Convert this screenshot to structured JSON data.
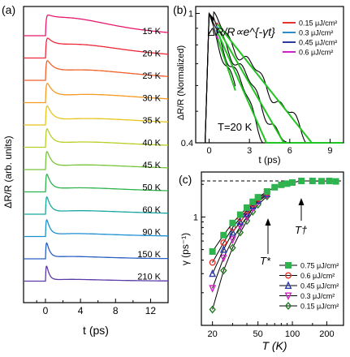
{
  "chart_data": [
    {
      "panel_label": "(a)",
      "type": "line",
      "xlabel": "t (ps)",
      "ylabel": "ΔR/R (arb. units)",
      "xlim": [
        -2.5,
        14
      ],
      "xticks": [
        0,
        4,
        8,
        12
      ],
      "legend": "inline labels at right",
      "series": [
        {
          "label": "15 K",
          "color": "#e8186e",
          "fast_decay_ps": 1.2,
          "slow_amp": 0.55,
          "slow_peak_ps": 3.5
        },
        {
          "label": "20 K",
          "color": "#ee2838",
          "fast_decay_ps": 1.0,
          "slow_amp": 0.45,
          "slow_peak_ps": 4.0
        },
        {
          "label": "25 K",
          "color": "#f1612a",
          "fast_decay_ps": 0.9,
          "slow_amp": 0.35,
          "slow_peak_ps": 4.5
        },
        {
          "label": "30 K",
          "color": "#f59a23",
          "fast_decay_ps": 0.8,
          "slow_amp": 0.28,
          "slow_peak_ps": 5.0
        },
        {
          "label": "35 K",
          "color": "#e7c51f",
          "fast_decay_ps": 0.7,
          "slow_amp": 0.22,
          "slow_peak_ps": 5.0
        },
        {
          "label": "40 K",
          "color": "#b9cf26",
          "fast_decay_ps": 0.6,
          "slow_amp": 0.18,
          "slow_peak_ps": 4.5
        },
        {
          "label": "45 K",
          "color": "#78c43a",
          "fast_decay_ps": 0.55,
          "slow_amp": 0.16,
          "slow_peak_ps": 4.5
        },
        {
          "label": "50 K",
          "color": "#2fb34f",
          "fast_decay_ps": 0.5,
          "slow_amp": 0.14,
          "slow_peak_ps": 4.0
        },
        {
          "label": "60 K",
          "color": "#1aa8a0",
          "fast_decay_ps": 0.45,
          "slow_amp": 0.12,
          "slow_peak_ps": 4.0
        },
        {
          "label": "90 K",
          "color": "#1e8fd0",
          "fast_decay_ps": 0.4,
          "slow_amp": 0.1,
          "slow_peak_ps": 3.5
        },
        {
          "label": "150 K",
          "color": "#2a60c0",
          "fast_decay_ps": 0.35,
          "slow_amp": 0.08,
          "slow_peak_ps": 3.0
        },
        {
          "label": "210 K",
          "color": "#5b3aa8",
          "fast_decay_ps": 0.3,
          "slow_amp": 0.06,
          "slow_peak_ps": 3.0
        }
      ]
    },
    {
      "panel_label": "(b)",
      "type": "line",
      "title": "ΔR/R∝e^{-γt}",
      "annotation": "T=20 K",
      "xlabel": "t (ps)",
      "ylabel": "ΔR/R (Normalized)",
      "xlim": [
        -1,
        10
      ],
      "xticks": [
        0,
        3,
        6,
        9
      ],
      "ylim": [
        0.4,
        1.05
      ],
      "yscale": "log",
      "yticks": [
        0.4,
        1
      ],
      "legend": "top-right",
      "fit_line_color": "#21c421",
      "series": [
        {
          "name": "0.15 μJ/cm²",
          "color": "#e8342e",
          "decay_rate": 0.12
        },
        {
          "name": "0.3 μJ/cm²",
          "color": "#2a8fc8",
          "decay_rate": 0.165
        },
        {
          "name": "0.45 μJ/cm²",
          "color": "#2a3a9e",
          "decay_rate": 0.215
        },
        {
          "name": "0.6 μJ/cm²",
          "color": "#d020c8",
          "decay_rate": 0.28
        }
      ]
    },
    {
      "panel_label": "(c)",
      "type": "scatter",
      "xlabel": "T (K)",
      "ylabel": "γ (ps⁻¹)",
      "xscale": "log",
      "yscale": "log",
      "xlim": [
        16,
        280
      ],
      "xticks": [
        20,
        50,
        100,
        200
      ],
      "ylim": [
        0.1,
        2.6
      ],
      "yticks": [
        1
      ],
      "legend": "bottom-right",
      "reference_line": {
        "value": 2.15,
        "style": "dashed"
      },
      "annotations": [
        "T*",
        "T†"
      ],
      "x": [
        20,
        25,
        30,
        35,
        40,
        45,
        50,
        60,
        70,
        80,
        90,
        100,
        120,
        150,
        180,
        210,
        240
      ],
      "series": [
        {
          "name": "0.75  μJ/cm²",
          "marker": "square",
          "color": "#2fb34f",
          "values": [
            0.48,
            0.68,
            0.88,
            1.05,
            1.22,
            1.38,
            1.52,
            1.72,
            1.88,
            1.98,
            2.03,
            2.08,
            2.15,
            2.15,
            2.14,
            2.15,
            2.13
          ]
        },
        {
          "name": "0.6  μJ/cm²",
          "marker": "circle",
          "color": "#e8342e",
          "values": [
            0.38,
            0.58,
            0.8,
            0.98,
            1.15,
            1.32,
            1.48,
            1.68,
            null,
            null,
            null,
            null,
            null,
            null,
            null,
            null,
            null
          ]
        },
        {
          "name": "0.45  μJ/cm²",
          "marker": "triangle-up",
          "color": "#2a3aa8",
          "values": [
            0.3,
            0.5,
            0.72,
            0.9,
            1.08,
            1.26,
            1.42,
            1.64,
            null,
            null,
            null,
            null,
            null,
            null,
            null,
            null,
            null
          ]
        },
        {
          "name": "0.3  μJ/cm²",
          "marker": "triangle-down",
          "color": "#d020c8",
          "values": [
            0.22,
            0.42,
            0.62,
            0.82,
            1.0,
            1.2,
            1.38,
            1.6,
            null,
            null,
            null,
            null,
            null,
            null,
            null,
            null,
            null
          ]
        },
        {
          "name": "0.15  μJ/cm²",
          "marker": "diamond",
          "color": "#2a7a2a",
          "values": [
            0.14,
            0.32,
            0.52,
            0.72,
            0.92,
            1.12,
            1.3,
            1.55,
            null,
            null,
            null,
            null,
            null,
            null,
            null,
            null,
            null
          ]
        }
      ]
    }
  ]
}
